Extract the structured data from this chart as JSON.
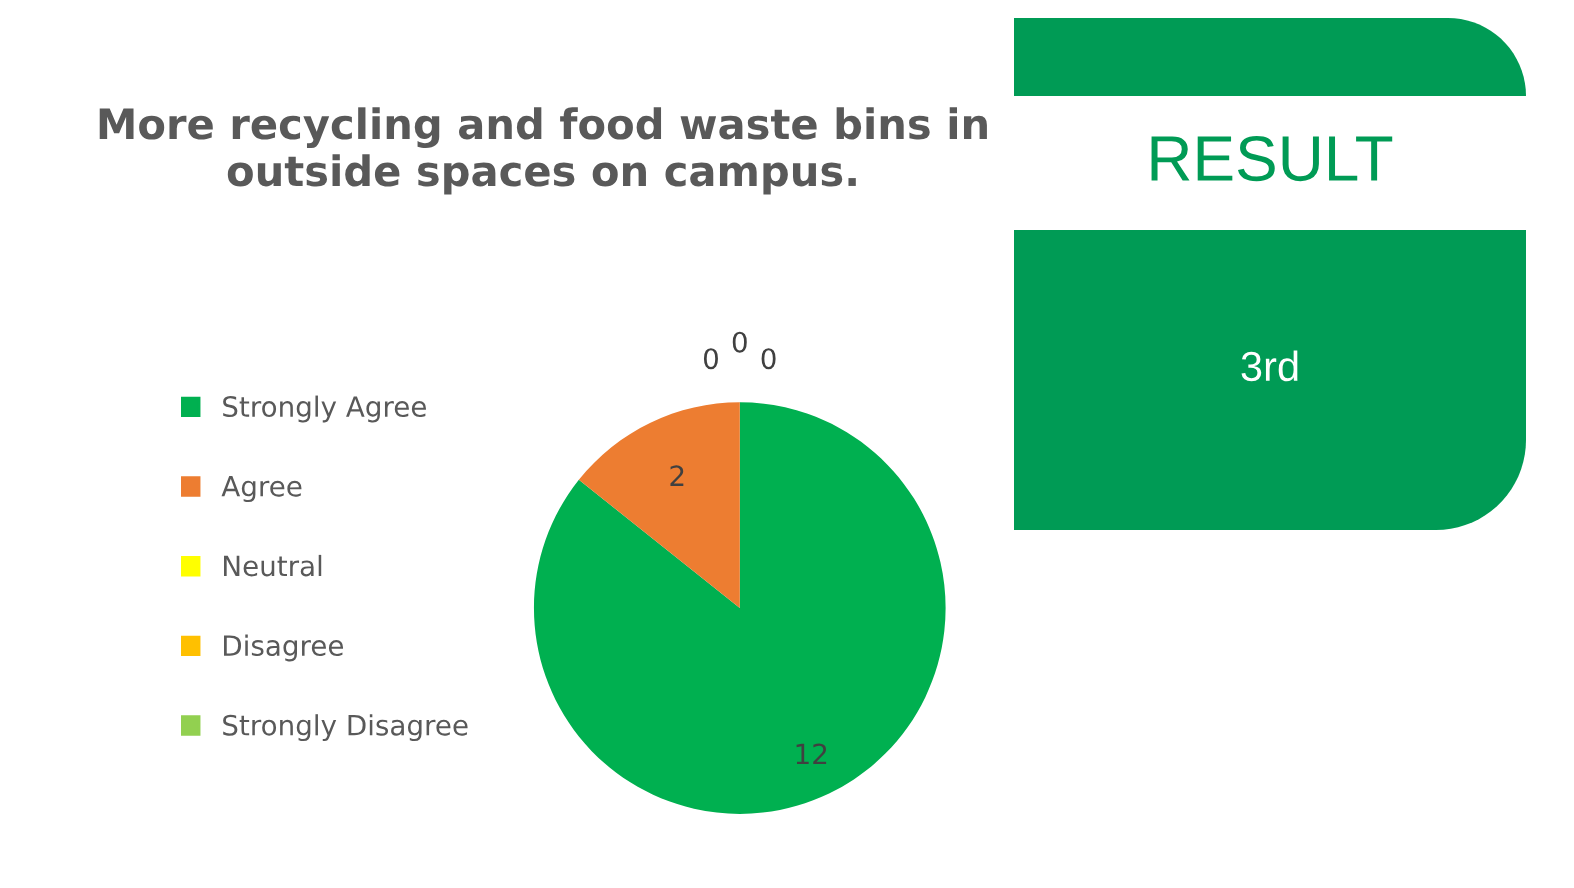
{
  "chart_data": [
    {
      "type": "pie",
      "title": "More recycling and food waste bins in outside spaces on campus.",
      "categories": [
        "Strongly Agree",
        "Agree",
        "Neutral",
        "Disagree",
        "Strongly Disagree"
      ],
      "values": [
        12,
        2,
        0,
        0,
        0
      ],
      "colors": [
        "#00b050",
        "#ed7d31",
        "#ffff00",
        "#ffc000",
        "#92d050"
      ],
      "value_labels": [
        "12",
        "2",
        "0",
        "0",
        "0"
      ],
      "legend": "left"
    },
    {
      "type": "other",
      "title": "RESULT",
      "annotations": [
        "3rd"
      ]
    }
  ]
}
